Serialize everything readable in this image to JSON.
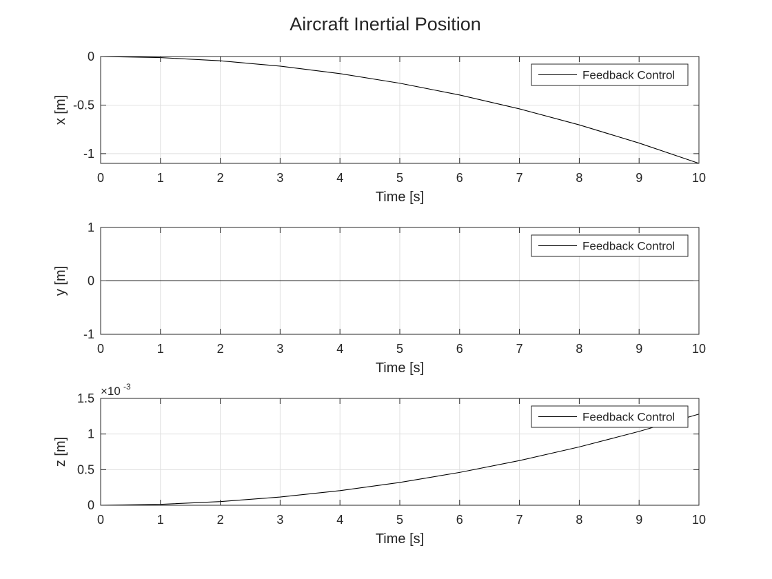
{
  "figure": {
    "title": "Aircraft Inertial Position"
  },
  "chart_data": [
    {
      "type": "line",
      "title": "",
      "xlabel": "Time [s]",
      "ylabel": "x [m]",
      "xlim": [
        0,
        10
      ],
      "ylim": [
        -1.1,
        0
      ],
      "xticks": [
        "0",
        "1",
        "2",
        "3",
        "4",
        "5",
        "6",
        "7",
        "8",
        "9",
        "10"
      ],
      "yticks": [
        {
          "value": 0,
          "label": "0"
        },
        {
          "value": -0.5,
          "label": "-0.5"
        },
        {
          "value": -1,
          "label": "-1"
        }
      ],
      "exponent": "",
      "grid": true,
      "legend": "top-right",
      "series": [
        {
          "name": "Feedback Control",
          "color": "#000000",
          "x": [
            0,
            1,
            2,
            3,
            4,
            5,
            6,
            7,
            8,
            9,
            10
          ],
          "values": [
            0,
            -0.011,
            -0.044,
            -0.099,
            -0.176,
            -0.275,
            -0.396,
            -0.539,
            -0.704,
            -0.891,
            -1.1
          ]
        }
      ]
    },
    {
      "type": "line",
      "title": "",
      "xlabel": "Time [s]",
      "ylabel": "y [m]",
      "xlim": [
        0,
        10
      ],
      "ylim": [
        -1,
        1
      ],
      "xticks": [
        "0",
        "1",
        "2",
        "3",
        "4",
        "5",
        "6",
        "7",
        "8",
        "9",
        "10"
      ],
      "yticks": [
        {
          "value": 1,
          "label": "1"
        },
        {
          "value": 0,
          "label": "0"
        },
        {
          "value": -1,
          "label": "-1"
        }
      ],
      "exponent": "",
      "grid": true,
      "legend": "top-right",
      "series": [
        {
          "name": "Feedback Control",
          "color": "#000000",
          "x": [
            0,
            1,
            2,
            3,
            4,
            5,
            6,
            7,
            8,
            9,
            10
          ],
          "values": [
            0,
            0,
            0,
            0,
            0,
            0,
            0,
            0,
            0,
            0,
            0
          ]
        }
      ]
    },
    {
      "type": "line",
      "title": "",
      "xlabel": "Time [s]",
      "ylabel": "z [m]",
      "xlim": [
        0,
        10
      ],
      "ylim": [
        0,
        1.5
      ],
      "xticks": [
        "0",
        "1",
        "2",
        "3",
        "4",
        "5",
        "6",
        "7",
        "8",
        "9",
        "10"
      ],
      "yticks": [
        {
          "value": 1.5,
          "label": "1.5"
        },
        {
          "value": 1,
          "label": "1"
        },
        {
          "value": 0.5,
          "label": "0.5"
        },
        {
          "value": 0,
          "label": "0"
        }
      ],
      "exponent": "×10",
      "exponent_power": "-3",
      "grid": true,
      "legend": "top-right",
      "series": [
        {
          "name": "Feedback Control",
          "color": "#000000",
          "x": [
            0,
            1,
            2,
            3,
            4,
            5,
            6,
            7,
            8,
            9,
            10
          ],
          "values": [
            0,
            0.0128,
            0.0512,
            0.1152,
            0.2048,
            0.32,
            0.4608,
            0.6272,
            0.8192,
            1.0368,
            1.28
          ]
        }
      ]
    }
  ]
}
